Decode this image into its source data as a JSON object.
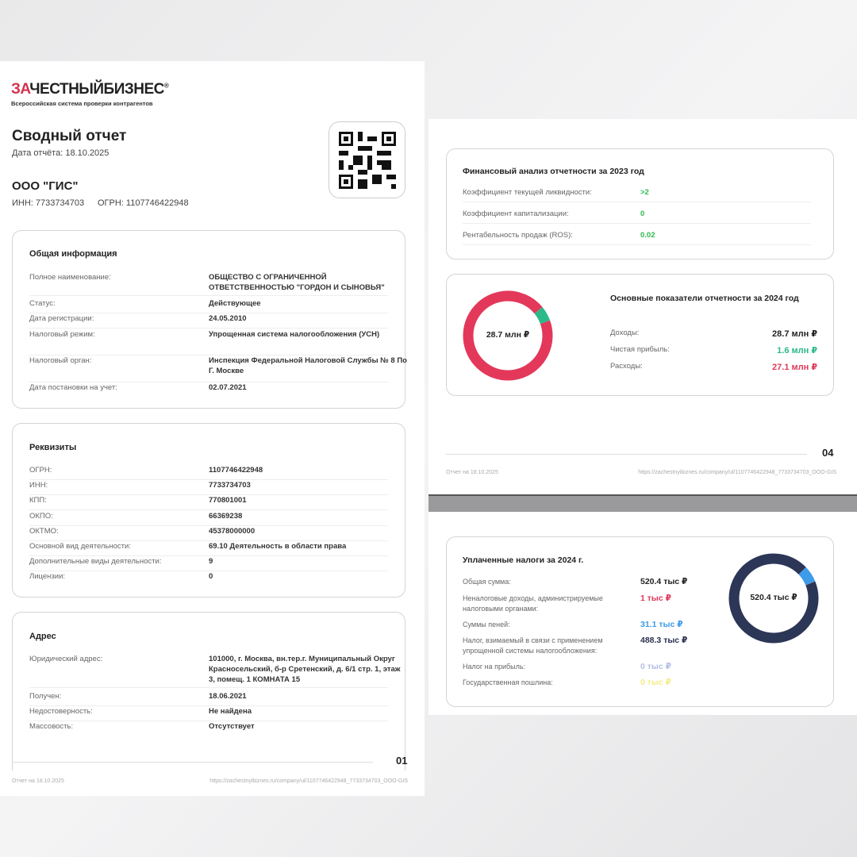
{
  "left_page": {
    "logo": {
      "red": "ЗА",
      "black": "ЧЕСТНЫЙБИЗНЕС",
      "mark": "®",
      "tagline": "Всероссийская система проверки контрагентов"
    },
    "title": "Сводный отчет",
    "report_date": "Дата отчёта: 18.10.2025",
    "company": "ООО \"ГИС\"",
    "inn": "ИНН: 7733734703",
    "ogrn": "ОГРН: 1107746422948",
    "general": {
      "title": "Общая информация",
      "rows": [
        {
          "label": "Полное наименование:",
          "value": "ОБЩЕСТВО С ОГРАНИЧЕННОЙ ОТВЕТСТВЕННОСТЬЮ \"ГОРДОН И СЫНОВЬЯ\""
        },
        {
          "label": "Статус:",
          "value": "Действующее"
        },
        {
          "label": "Дата регистрации:",
          "value": "24.05.2010"
        },
        {
          "label": "Налоговый режим:",
          "value": "Упрощенная система налогообложения (УСН)"
        },
        {
          "label": "Налоговый орган:",
          "value": "Инспекция Федеральной Налоговой Службы № 8 По Г. Москве"
        },
        {
          "label": "Дата постановки на учет:",
          "value": "02.07.2021"
        }
      ]
    },
    "requisites": {
      "title": "Реквизиты",
      "rows": [
        {
          "label": "ОГРН:",
          "value": "1107746422948"
        },
        {
          "label": "ИНН:",
          "value": "7733734703"
        },
        {
          "label": "КПП:",
          "value": "770801001"
        },
        {
          "label": "ОКПО:",
          "value": "66369238"
        },
        {
          "label": "ОКТМО:",
          "value": "45378000000"
        },
        {
          "label": "Основной вид деятельности:",
          "value": "69.10 Деятельность в области права"
        },
        {
          "label": "Дополнительные виды деятельности:",
          "value": "9"
        },
        {
          "label": "Лицензии:",
          "value": "0"
        }
      ]
    },
    "address": {
      "title": "Адрес",
      "rows": [
        {
          "label": "Юридический адрес:",
          "value": "101000, г. Москва, вн.тер.г. Муниципальный Округ Красносельский, б-р Сретенский, д. 6/1 стр. 1, этаж 3, помещ. 1 КОМНАТА 15"
        },
        {
          "label": "Получен:",
          "value": "18.06.2021"
        },
        {
          "label": "Недостоверность:",
          "value": "Не найдена"
        },
        {
          "label": "Массовость:",
          "value": "Отсутствует"
        }
      ]
    },
    "page_number": "01",
    "footer_date": "Отчет на 18.10.2025",
    "footer_url": "https://zachestnyibiznes.ru/company/ul/1107746422948_7733734703_OOO-GIS"
  },
  "right_page": {
    "fin": {
      "title": "Финансовый анализ отчетности за 2023 год",
      "rows": [
        {
          "label": "Коэффициент текущей ликвидности:",
          "value": ">2"
        },
        {
          "label": "Коэффициент капитализации:",
          "value": "0"
        },
        {
          "label": "Рентабельность продаж (ROS):",
          "value": "0.02"
        }
      ],
      "value_color": "#2db84a"
    },
    "main": {
      "title": "Основные показатели отчетности за 2024 год",
      "center": "28.7 млн ₽",
      "rows": [
        {
          "label": "Доходы:",
          "value": "28.7 млн ₽",
          "color": "#222222"
        },
        {
          "label": "Чистая прибыль:",
          "value": "1.6 млн ₽",
          "color": "#2bb98a"
        },
        {
          "label": "Расходы:",
          "value": "27.1 млн ₽",
          "color": "#e03a5a"
        }
      ],
      "donut": [
        {
          "value": 27.1,
          "color": "#e3385a"
        },
        {
          "value": 1.6,
          "color": "#2bb98a"
        }
      ]
    },
    "page_number": "04",
    "footer_date": "Отчет на 18.10.2025",
    "footer_url": "https://zachestnyibiznes.ru/company/ul/1107746422948_7733734703_OOO-GIS",
    "taxes": {
      "title": "Уплаченные налоги за 2024 г.",
      "center": "520.4 тыс ₽",
      "rows": [
        {
          "label": "Общая сумма:",
          "value": "520.4 тыс ₽",
          "color": "#222222"
        },
        {
          "label": "Неналоговые доходы, администрируемые налоговыми органами:",
          "value": "1 тыс ₽",
          "color": "#e03a5a"
        },
        {
          "label": "Суммы пеней:",
          "value": "31.1 тыс ₽",
          "color": "#3d9be9"
        },
        {
          "label": "Налог, взимаемый в связи с применением упрощенной системы налогообложения:",
          "value": "488.3 тыс ₽",
          "color": "#2a3050"
        },
        {
          "label": "Налог на прибыль:",
          "value": "0 тыс ₽",
          "color": "#b4c0e6"
        },
        {
          "label": "Государственная пошлина:",
          "value": "0 тыс ₽",
          "color": "#f3ec8a"
        }
      ],
      "donut": [
        {
          "value": 488.3,
          "color": "#2c3656"
        },
        {
          "value": 31.1,
          "color": "#3d9be9"
        },
        {
          "value": 1,
          "color": "#e3385a"
        }
      ]
    }
  }
}
